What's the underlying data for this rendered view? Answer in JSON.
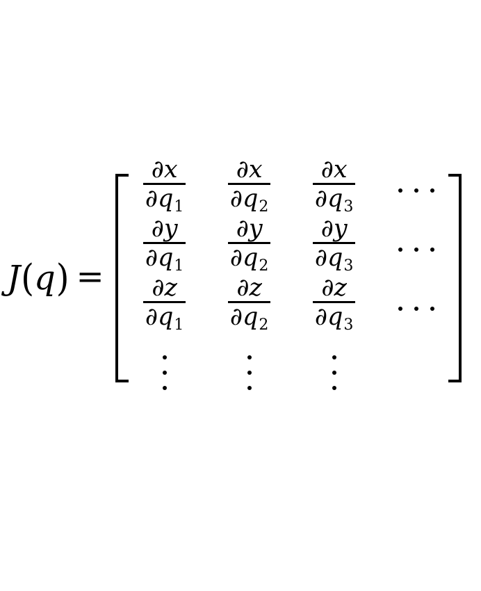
{
  "canvas": {
    "background": "#ffffff",
    "ink": "#000000"
  },
  "equation": {
    "description": "jacobian-matrix-definition",
    "lhs": {
      "function": "J",
      "open_paren": "(",
      "argument": "q",
      "close_paren": ")"
    },
    "relation": "=",
    "matrix": {
      "rows": [
        {
          "cells": [
            {
              "num": "∂x",
              "den": "∂q",
              "sub": "1"
            },
            {
              "num": "∂x",
              "den": "∂q",
              "sub": "2"
            },
            {
              "num": "∂x",
              "den": "∂q",
              "sub": "3"
            }
          ]
        },
        {
          "cells": [
            {
              "num": "∂y",
              "den": "∂q",
              "sub": "1"
            },
            {
              "num": "∂y",
              "den": "∂q",
              "sub": "2"
            },
            {
              "num": "∂y",
              "den": "∂q",
              "sub": "3"
            }
          ]
        },
        {
          "cells": [
            {
              "num": "∂z",
              "den": "∂q",
              "sub": "1"
            },
            {
              "num": "∂z",
              "den": "∂q",
              "sub": "2"
            },
            {
              "num": "∂z",
              "den": "∂q",
              "sub": "3"
            }
          ]
        }
      ],
      "cdots": "⋯",
      "vdots": "⋮"
    }
  }
}
